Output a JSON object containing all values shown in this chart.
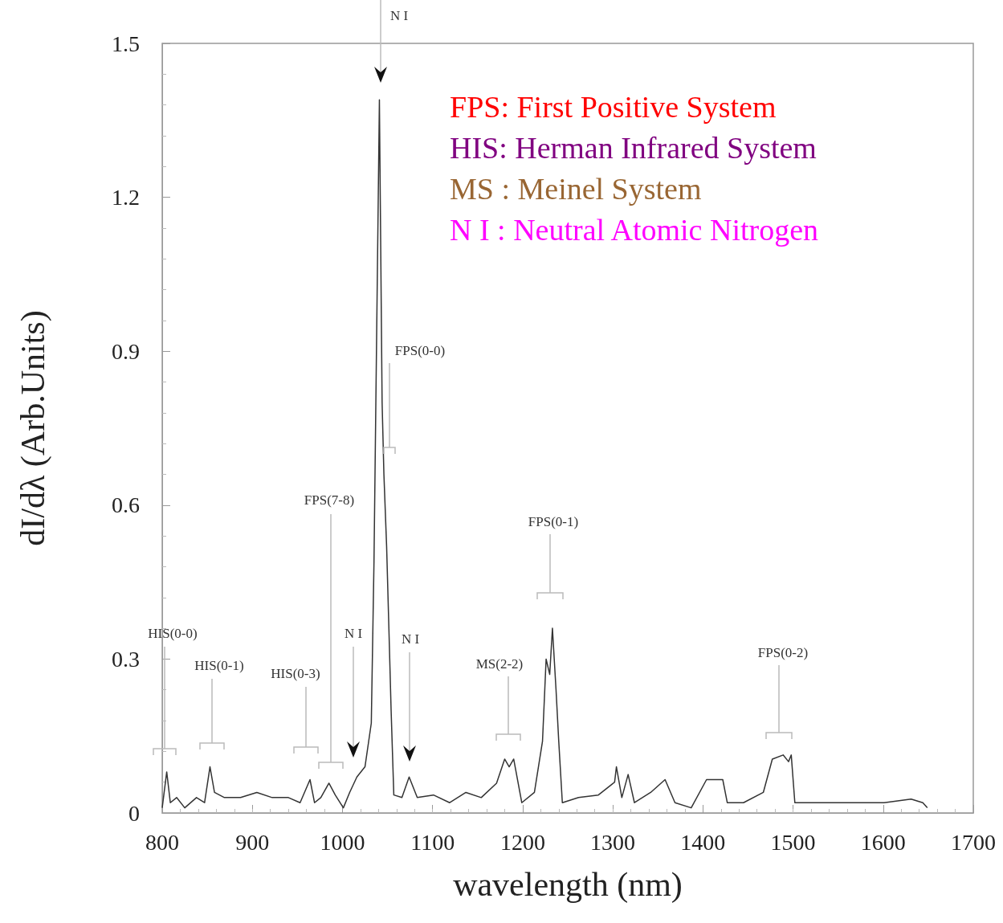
{
  "chart_data": {
    "type": "line",
    "xlabel": "wavelength (nm)",
    "ylabel": "dI/dλ (Arb.Units)",
    "xlim": [
      800,
      1700
    ],
    "xticks": [
      800,
      900,
      1000,
      1100,
      1200,
      1300,
      1400,
      1500,
      1600,
      1700
    ],
    "ylim": [
      0,
      1.5
    ],
    "yticks": [
      {
        "value": 0,
        "label": "0"
      },
      0.3,
      0.6,
      0.9,
      1.2,
      1.5
    ],
    "grid": false,
    "marker": "none",
    "line_style": "solid",
    "series": [
      {
        "color": "#333333",
        "x": [
          800,
          805,
          809,
          816,
          825,
          838,
          847,
          853,
          858,
          869,
          887,
          905,
          922,
          940,
          953,
          964,
          969,
          976,
          985,
          992,
          1001,
          1008,
          1016,
          1025,
          1032,
          1035,
          1041,
          1044,
          1046,
          1049,
          1052,
          1054,
          1057,
          1066,
          1074,
          1083,
          1101,
          1119,
          1137,
          1154,
          1171,
          1180,
          1185,
          1190,
          1199,
          1213,
          1222,
          1226,
          1230,
          1233,
          1237,
          1240,
          1244,
          1262,
          1284,
          1302,
          1304,
          1310,
          1317,
          1324,
          1342,
          1358,
          1369,
          1387,
          1404,
          1422,
          1427,
          1445,
          1467,
          1477,
          1489,
          1495,
          1498,
          1502,
          1529,
          1565,
          1601,
          1631,
          1644,
          1649
        ],
        "values": [
          0.01,
          0.08,
          0.02,
          0.03,
          0.01,
          0.03,
          0.02,
          0.09,
          0.04,
          0.03,
          0.03,
          0.04,
          0.03,
          0.03,
          0.02,
          0.065,
          0.02,
          0.03,
          0.058,
          0.035,
          0.01,
          0.04,
          0.07,
          0.09,
          0.175,
          0.49,
          1.39,
          0.8,
          0.66,
          0.52,
          0.33,
          0.2,
          0.035,
          0.03,
          0.07,
          0.03,
          0.035,
          0.02,
          0.04,
          0.03,
          0.058,
          0.105,
          0.09,
          0.105,
          0.02,
          0.04,
          0.14,
          0.3,
          0.27,
          0.36,
          0.24,
          0.14,
          0.02,
          0.03,
          0.035,
          0.06,
          0.09,
          0.03,
          0.075,
          0.02,
          0.04,
          0.065,
          0.02,
          0.01,
          0.065,
          0.065,
          0.02,
          0.02,
          0.04,
          0.105,
          0.113,
          0.1,
          0.113,
          0.02,
          0.02,
          0.02,
          0.02,
          0.027,
          0.02,
          0.01
        ]
      }
    ],
    "annotations": [
      "HIS(0-0)",
      "HIS(0-1)",
      "HIS(0-3)",
      "FPS(7-8)",
      "N I",
      "FPS(0-0)",
      "N I",
      "MS(2-2)",
      "FPS(0-1)",
      "FPS(0-2)",
      "N I",
      "FPS: First Positive System",
      "HIS: Herman Infrared System",
      "MS : Meinel System",
      "N I : Neutral Atomic Nitrogen"
    ]
  }
}
